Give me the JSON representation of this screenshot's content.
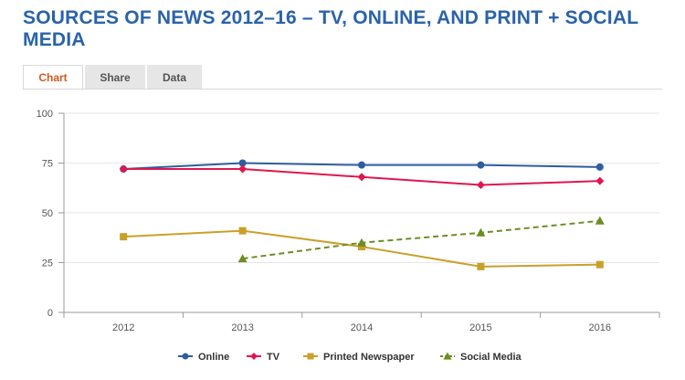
{
  "title": "SOURCES OF NEWS 2012–16 – TV, ONLINE, AND PRINT + SOCIAL MEDIA",
  "tabs": [
    {
      "label": "Chart",
      "active": true
    },
    {
      "label": "Share",
      "active": false
    },
    {
      "label": "Data",
      "active": false
    }
  ],
  "chart_data": {
    "type": "line",
    "title": "",
    "xlabel": "",
    "ylabel": "",
    "categories": [
      "2012",
      "2013",
      "2014",
      "2015",
      "2016"
    ],
    "ylim": [
      0,
      100
    ],
    "yticks": [
      0,
      25,
      50,
      75,
      100
    ],
    "grid": true,
    "legend_position": "bottom",
    "series": [
      {
        "name": "Online",
        "color": "#2e5d9f",
        "marker": "circle",
        "dashed": false,
        "values": [
          72,
          75,
          74,
          74,
          73
        ]
      },
      {
        "name": "TV",
        "color": "#e0174e",
        "marker": "diamond",
        "dashed": false,
        "values": [
          72,
          72,
          68,
          64,
          66
        ]
      },
      {
        "name": "Printed Newspaper",
        "color": "#c9a02a",
        "marker": "square",
        "dashed": false,
        "values": [
          38,
          41,
          33,
          23,
          24
        ]
      },
      {
        "name": "Social Media",
        "color": "#6b8e23",
        "marker": "triangle",
        "dashed": true,
        "values": [
          null,
          27,
          35,
          40,
          46
        ]
      }
    ]
  }
}
